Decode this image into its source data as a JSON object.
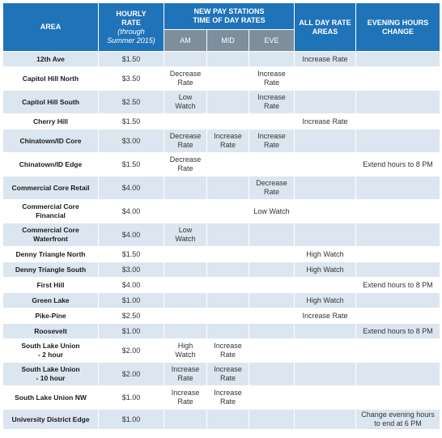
{
  "headers": {
    "area": "AREA",
    "hourly_line1": "HOURLY",
    "hourly_line2": "RATE",
    "hourly_note1": "(through",
    "hourly_note2": "Summer 2015)",
    "new_pay_line1": "NEW PAY STATIONS",
    "new_pay_line2": "TIME OF DAY RATES",
    "am": "AM",
    "mid": "MID",
    "eve": "EVE",
    "allday_line1": "ALL DAY RATE",
    "allday_line2": "AREAS",
    "evening_line1": "EVENING HOURS",
    "evening_line2": "CHANGE"
  },
  "rows": [
    {
      "area": [
        "12th Ave"
      ],
      "rate": "$1.50",
      "am": [],
      "mid": [],
      "eve": [],
      "allday": [
        "Increase Rate"
      ],
      "evening": []
    },
    {
      "area": [
        "Capitol Hill North"
      ],
      "rate": "$3.50",
      "am": [
        "Decrease",
        "Rate"
      ],
      "mid": [],
      "eve": [
        "Increase",
        "Rate"
      ],
      "allday": [],
      "evening": []
    },
    {
      "area": [
        "Capitol Hill South"
      ],
      "rate": "$2.50",
      "am": [
        "Low",
        "Watch"
      ],
      "mid": [],
      "eve": [
        "Increase",
        "Rate"
      ],
      "allday": [],
      "evening": []
    },
    {
      "area": [
        "Cherry Hill"
      ],
      "rate": "$1.50",
      "am": [],
      "mid": [],
      "eve": [],
      "allday": [
        "Increase Rate"
      ],
      "evening": []
    },
    {
      "area": [
        "Chinatown/ID Core"
      ],
      "rate": "$3.00",
      "am": [
        "Decrease",
        "Rate"
      ],
      "mid": [
        "Increase",
        "Rate"
      ],
      "eve": [
        "Increase",
        "Rate"
      ],
      "allday": [],
      "evening": []
    },
    {
      "area": [
        "Chinatown/ID Edge"
      ],
      "rate": "$1.50",
      "am": [
        "Decrease",
        "Rate"
      ],
      "mid": [],
      "eve": [],
      "allday": [],
      "evening": [
        "Extend hours to 8 PM"
      ]
    },
    {
      "area": [
        "Commercial Core Retail"
      ],
      "rate": "$4.00",
      "am": [],
      "mid": [],
      "eve": [
        "Decrease",
        "Rate"
      ],
      "allday": [],
      "evening": []
    },
    {
      "area": [
        "Commercial Core",
        "Financial"
      ],
      "rate": "$4.00",
      "am": [],
      "mid": [],
      "eve": [
        "Low Watch"
      ],
      "allday": [],
      "evening": []
    },
    {
      "area": [
        "Commercial Core",
        "Waterfront"
      ],
      "rate": "$4.00",
      "am": [
        "Low",
        "Watch"
      ],
      "mid": [],
      "eve": [],
      "allday": [],
      "evening": []
    },
    {
      "area": [
        "Denny Triangle North"
      ],
      "rate": "$1.50",
      "am": [],
      "mid": [],
      "eve": [],
      "allday": [
        "High Watch"
      ],
      "evening": []
    },
    {
      "area": [
        "Denny Triangle South"
      ],
      "rate": "$3.00",
      "am": [],
      "mid": [],
      "eve": [],
      "allday": [
        "High Watch"
      ],
      "evening": []
    },
    {
      "area": [
        "First Hill"
      ],
      "rate": "$4.00",
      "am": [],
      "mid": [],
      "eve": [],
      "allday": [],
      "evening": [
        "Extend hours to 8 PM"
      ]
    },
    {
      "area": [
        "Green Lake"
      ],
      "rate": "$1.00",
      "am": [],
      "mid": [],
      "eve": [],
      "allday": [
        "High Watch"
      ],
      "evening": []
    },
    {
      "area": [
        "Pike-Pine"
      ],
      "rate": "$2.50",
      "am": [],
      "mid": [],
      "eve": [],
      "allday": [
        "Increase Rate"
      ],
      "evening": []
    },
    {
      "area": [
        "Roosevelt"
      ],
      "rate": "$1.00",
      "am": [],
      "mid": [],
      "eve": [],
      "allday": [],
      "evening": [
        "Extend hours to 8 PM"
      ]
    },
    {
      "area": [
        "South Lake Union",
        "- 2 hour"
      ],
      "rate": "$2.00",
      "am": [
        "High",
        "Watch"
      ],
      "mid": [
        "Increase",
        "Rate"
      ],
      "eve": [],
      "allday": [],
      "evening": []
    },
    {
      "area": [
        "South Lake Union",
        "- 10 hour"
      ],
      "rate": "$2.00",
      "am": [
        "Increase",
        "Rate"
      ],
      "mid": [
        "Increase",
        "Rate"
      ],
      "eve": [],
      "allday": [],
      "evening": []
    },
    {
      "area": [
        "South Lake Union NW"
      ],
      "rate": "$1.00",
      "am": [
        "Increase",
        "Rate"
      ],
      "mid": [
        "Increase",
        "Rate"
      ],
      "eve": [],
      "allday": [],
      "evening": []
    },
    {
      "area": [
        "University District Edge"
      ],
      "rate": "$1.00",
      "am": [],
      "mid": [],
      "eve": [],
      "allday": [],
      "evening": [
        "Change evening hours",
        "to end at 6 PM"
      ]
    }
  ]
}
